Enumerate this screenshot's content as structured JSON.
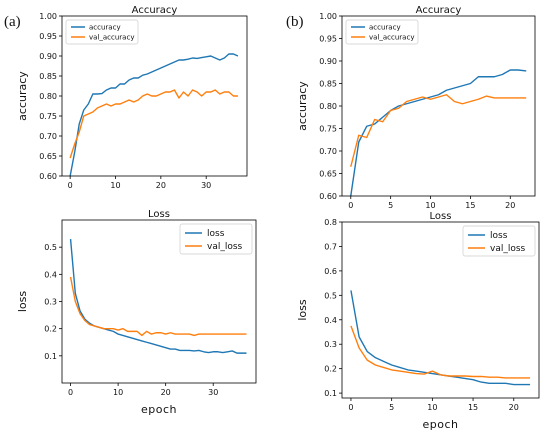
{
  "colors": {
    "series_1": "#1f77b4",
    "series_2": "#ff7f0e"
  },
  "panels": {
    "a": "(a)",
    "b": "(b)"
  },
  "chart_data": [
    {
      "id": "a-accuracy",
      "type": "line",
      "title": "Accuracy",
      "ylabel": "accuracy",
      "xlabel": "",
      "xlim": [
        -1.8,
        39
      ],
      "ylim": [
        0.6,
        1.0
      ],
      "xticks": [
        0,
        10,
        20,
        30
      ],
      "yticks": [
        0.6,
        0.65,
        0.7,
        0.75,
        0.8,
        0.85,
        0.9,
        0.95,
        1.0
      ],
      "legend": "top-left",
      "grid": false,
      "series": [
        {
          "name": "accuracy",
          "color": "series_1",
          "x": [
            0,
            1,
            2,
            3,
            4,
            5,
            6,
            7,
            8,
            9,
            10,
            11,
            12,
            13,
            14,
            15,
            16,
            17,
            18,
            19,
            20,
            21,
            22,
            23,
            24,
            25,
            26,
            27,
            28,
            29,
            30,
            31,
            32,
            33,
            34,
            35,
            36,
            37
          ],
          "y": [
            0.6,
            0.66,
            0.73,
            0.765,
            0.78,
            0.805,
            0.805,
            0.806,
            0.815,
            0.82,
            0.82,
            0.83,
            0.83,
            0.84,
            0.845,
            0.845,
            0.852,
            0.855,
            0.86,
            0.865,
            0.87,
            0.875,
            0.88,
            0.885,
            0.89,
            0.89,
            0.892,
            0.895,
            0.894,
            0.896,
            0.898,
            0.9,
            0.895,
            0.89,
            0.895,
            0.905,
            0.905,
            0.9
          ]
        },
        {
          "name": "val_accuracy",
          "color": "series_2",
          "x": [
            0,
            1,
            2,
            3,
            4,
            5,
            6,
            7,
            8,
            9,
            10,
            11,
            12,
            13,
            14,
            15,
            16,
            17,
            18,
            19,
            20,
            21,
            22,
            23,
            24,
            25,
            26,
            27,
            28,
            29,
            30,
            31,
            32,
            33,
            34,
            35,
            36,
            37
          ],
          "y": [
            0.645,
            0.68,
            0.71,
            0.75,
            0.755,
            0.76,
            0.77,
            0.775,
            0.78,
            0.775,
            0.78,
            0.78,
            0.785,
            0.79,
            0.785,
            0.79,
            0.8,
            0.805,
            0.8,
            0.8,
            0.805,
            0.81,
            0.81,
            0.815,
            0.795,
            0.81,
            0.8,
            0.815,
            0.81,
            0.8,
            0.81,
            0.81,
            0.815,
            0.805,
            0.81,
            0.81,
            0.8,
            0.8
          ]
        }
      ]
    },
    {
      "id": "a-loss",
      "type": "line",
      "title": "Loss",
      "ylabel": "loss",
      "xlabel": "epoch",
      "xlim": [
        -1.8,
        39
      ],
      "ylim": [
        0.0,
        0.6
      ],
      "xticks": [
        0,
        10,
        20,
        30
      ],
      "yticks": [
        0.1,
        0.2,
        0.3,
        0.4,
        0.5
      ],
      "legend": "top-right",
      "grid": false,
      "series": [
        {
          "name": "loss",
          "color": "series_1",
          "x": [
            0,
            1,
            2,
            3,
            4,
            5,
            6,
            7,
            8,
            9,
            10,
            11,
            12,
            13,
            14,
            15,
            16,
            17,
            18,
            19,
            20,
            21,
            22,
            23,
            24,
            25,
            26,
            27,
            28,
            29,
            30,
            31,
            32,
            33,
            34,
            35,
            36,
            37
          ],
          "y": [
            0.53,
            0.33,
            0.265,
            0.235,
            0.22,
            0.21,
            0.205,
            0.2,
            0.195,
            0.19,
            0.18,
            0.175,
            0.17,
            0.165,
            0.16,
            0.155,
            0.15,
            0.145,
            0.14,
            0.135,
            0.13,
            0.125,
            0.125,
            0.12,
            0.12,
            0.12,
            0.118,
            0.12,
            0.115,
            0.112,
            0.115,
            0.115,
            0.112,
            0.115,
            0.118,
            0.11,
            0.11,
            0.11
          ]
        },
        {
          "name": "val_loss",
          "color": "series_2",
          "x": [
            0,
            1,
            2,
            3,
            4,
            5,
            6,
            7,
            8,
            9,
            10,
            11,
            12,
            13,
            14,
            15,
            16,
            17,
            18,
            19,
            20,
            21,
            22,
            23,
            24,
            25,
            26,
            27,
            28,
            29,
            30,
            31,
            32,
            33,
            34,
            35,
            36,
            37
          ],
          "y": [
            0.39,
            0.3,
            0.255,
            0.23,
            0.215,
            0.21,
            0.205,
            0.2,
            0.2,
            0.2,
            0.195,
            0.2,
            0.19,
            0.19,
            0.19,
            0.175,
            0.19,
            0.18,
            0.185,
            0.185,
            0.18,
            0.185,
            0.18,
            0.18,
            0.18,
            0.18,
            0.175,
            0.18,
            0.18,
            0.18,
            0.18,
            0.18,
            0.18,
            0.18,
            0.18,
            0.18,
            0.18,
            0.18
          ]
        }
      ]
    },
    {
      "id": "b-accuracy",
      "type": "line",
      "title": "Accuracy",
      "ylabel": "accuracy",
      "xlabel": "",
      "xlim": [
        -1.1,
        23.1
      ],
      "ylim": [
        0.6,
        1.0
      ],
      "xticks": [
        0,
        5,
        10,
        15,
        20
      ],
      "yticks": [
        0.6,
        0.65,
        0.7,
        0.75,
        0.8,
        0.85,
        0.9,
        0.95,
        1.0
      ],
      "legend": "top-left",
      "grid": false,
      "series": [
        {
          "name": "accuracy",
          "color": "series_1",
          "x": [
            0,
            1,
            2,
            3,
            4,
            5,
            6,
            7,
            8,
            9,
            10,
            11,
            12,
            13,
            14,
            15,
            16,
            17,
            18,
            19,
            20,
            21,
            22
          ],
          "y": [
            0.6,
            0.72,
            0.755,
            0.76,
            0.775,
            0.79,
            0.8,
            0.805,
            0.81,
            0.815,
            0.82,
            0.825,
            0.835,
            0.84,
            0.845,
            0.85,
            0.865,
            0.865,
            0.865,
            0.87,
            0.88,
            0.88,
            0.878
          ]
        },
        {
          "name": "val_accuracy",
          "color": "series_2",
          "x": [
            0,
            1,
            2,
            3,
            4,
            5,
            6,
            7,
            8,
            9,
            10,
            11,
            12,
            13,
            14,
            15,
            16,
            17,
            18,
            19,
            20,
            21,
            22
          ],
          "y": [
            0.665,
            0.735,
            0.73,
            0.77,
            0.765,
            0.79,
            0.795,
            0.81,
            0.815,
            0.82,
            0.815,
            0.82,
            0.825,
            0.81,
            0.805,
            0.81,
            0.815,
            0.822,
            0.818,
            0.818,
            0.818,
            0.818,
            0.818
          ]
        }
      ]
    },
    {
      "id": "b-loss",
      "type": "line",
      "title": "Loss",
      "ylabel": "loss",
      "xlabel": "epoch",
      "xlim": [
        -1.1,
        23.1
      ],
      "ylim": [
        0.08,
        0.8
      ],
      "xticks": [
        0,
        5,
        10,
        15,
        20
      ],
      "yticks": [
        0.1,
        0.2,
        0.3,
        0.4,
        0.5,
        0.6,
        0.7,
        0.8
      ],
      "legend": "top-right",
      "grid": false,
      "series": [
        {
          "name": "loss",
          "color": "series_1",
          "x": [
            0,
            1,
            2,
            3,
            4,
            5,
            6,
            7,
            8,
            9,
            10,
            11,
            12,
            13,
            14,
            15,
            16,
            17,
            18,
            19,
            20,
            21,
            22
          ],
          "y": [
            0.52,
            0.33,
            0.27,
            0.245,
            0.23,
            0.215,
            0.205,
            0.195,
            0.19,
            0.185,
            0.18,
            0.175,
            0.17,
            0.165,
            0.16,
            0.155,
            0.145,
            0.14,
            0.14,
            0.14,
            0.135,
            0.135,
            0.135
          ]
        },
        {
          "name": "val_loss",
          "color": "series_2",
          "x": [
            0,
            1,
            2,
            3,
            4,
            5,
            6,
            7,
            8,
            9,
            10,
            11,
            12,
            13,
            14,
            15,
            16,
            17,
            18,
            19,
            20,
            21,
            22
          ],
          "y": [
            0.375,
            0.285,
            0.235,
            0.215,
            0.205,
            0.195,
            0.19,
            0.185,
            0.18,
            0.178,
            0.19,
            0.175,
            0.17,
            0.17,
            0.17,
            0.168,
            0.168,
            0.165,
            0.165,
            0.162,
            0.162,
            0.162,
            0.162
          ]
        }
      ]
    }
  ]
}
